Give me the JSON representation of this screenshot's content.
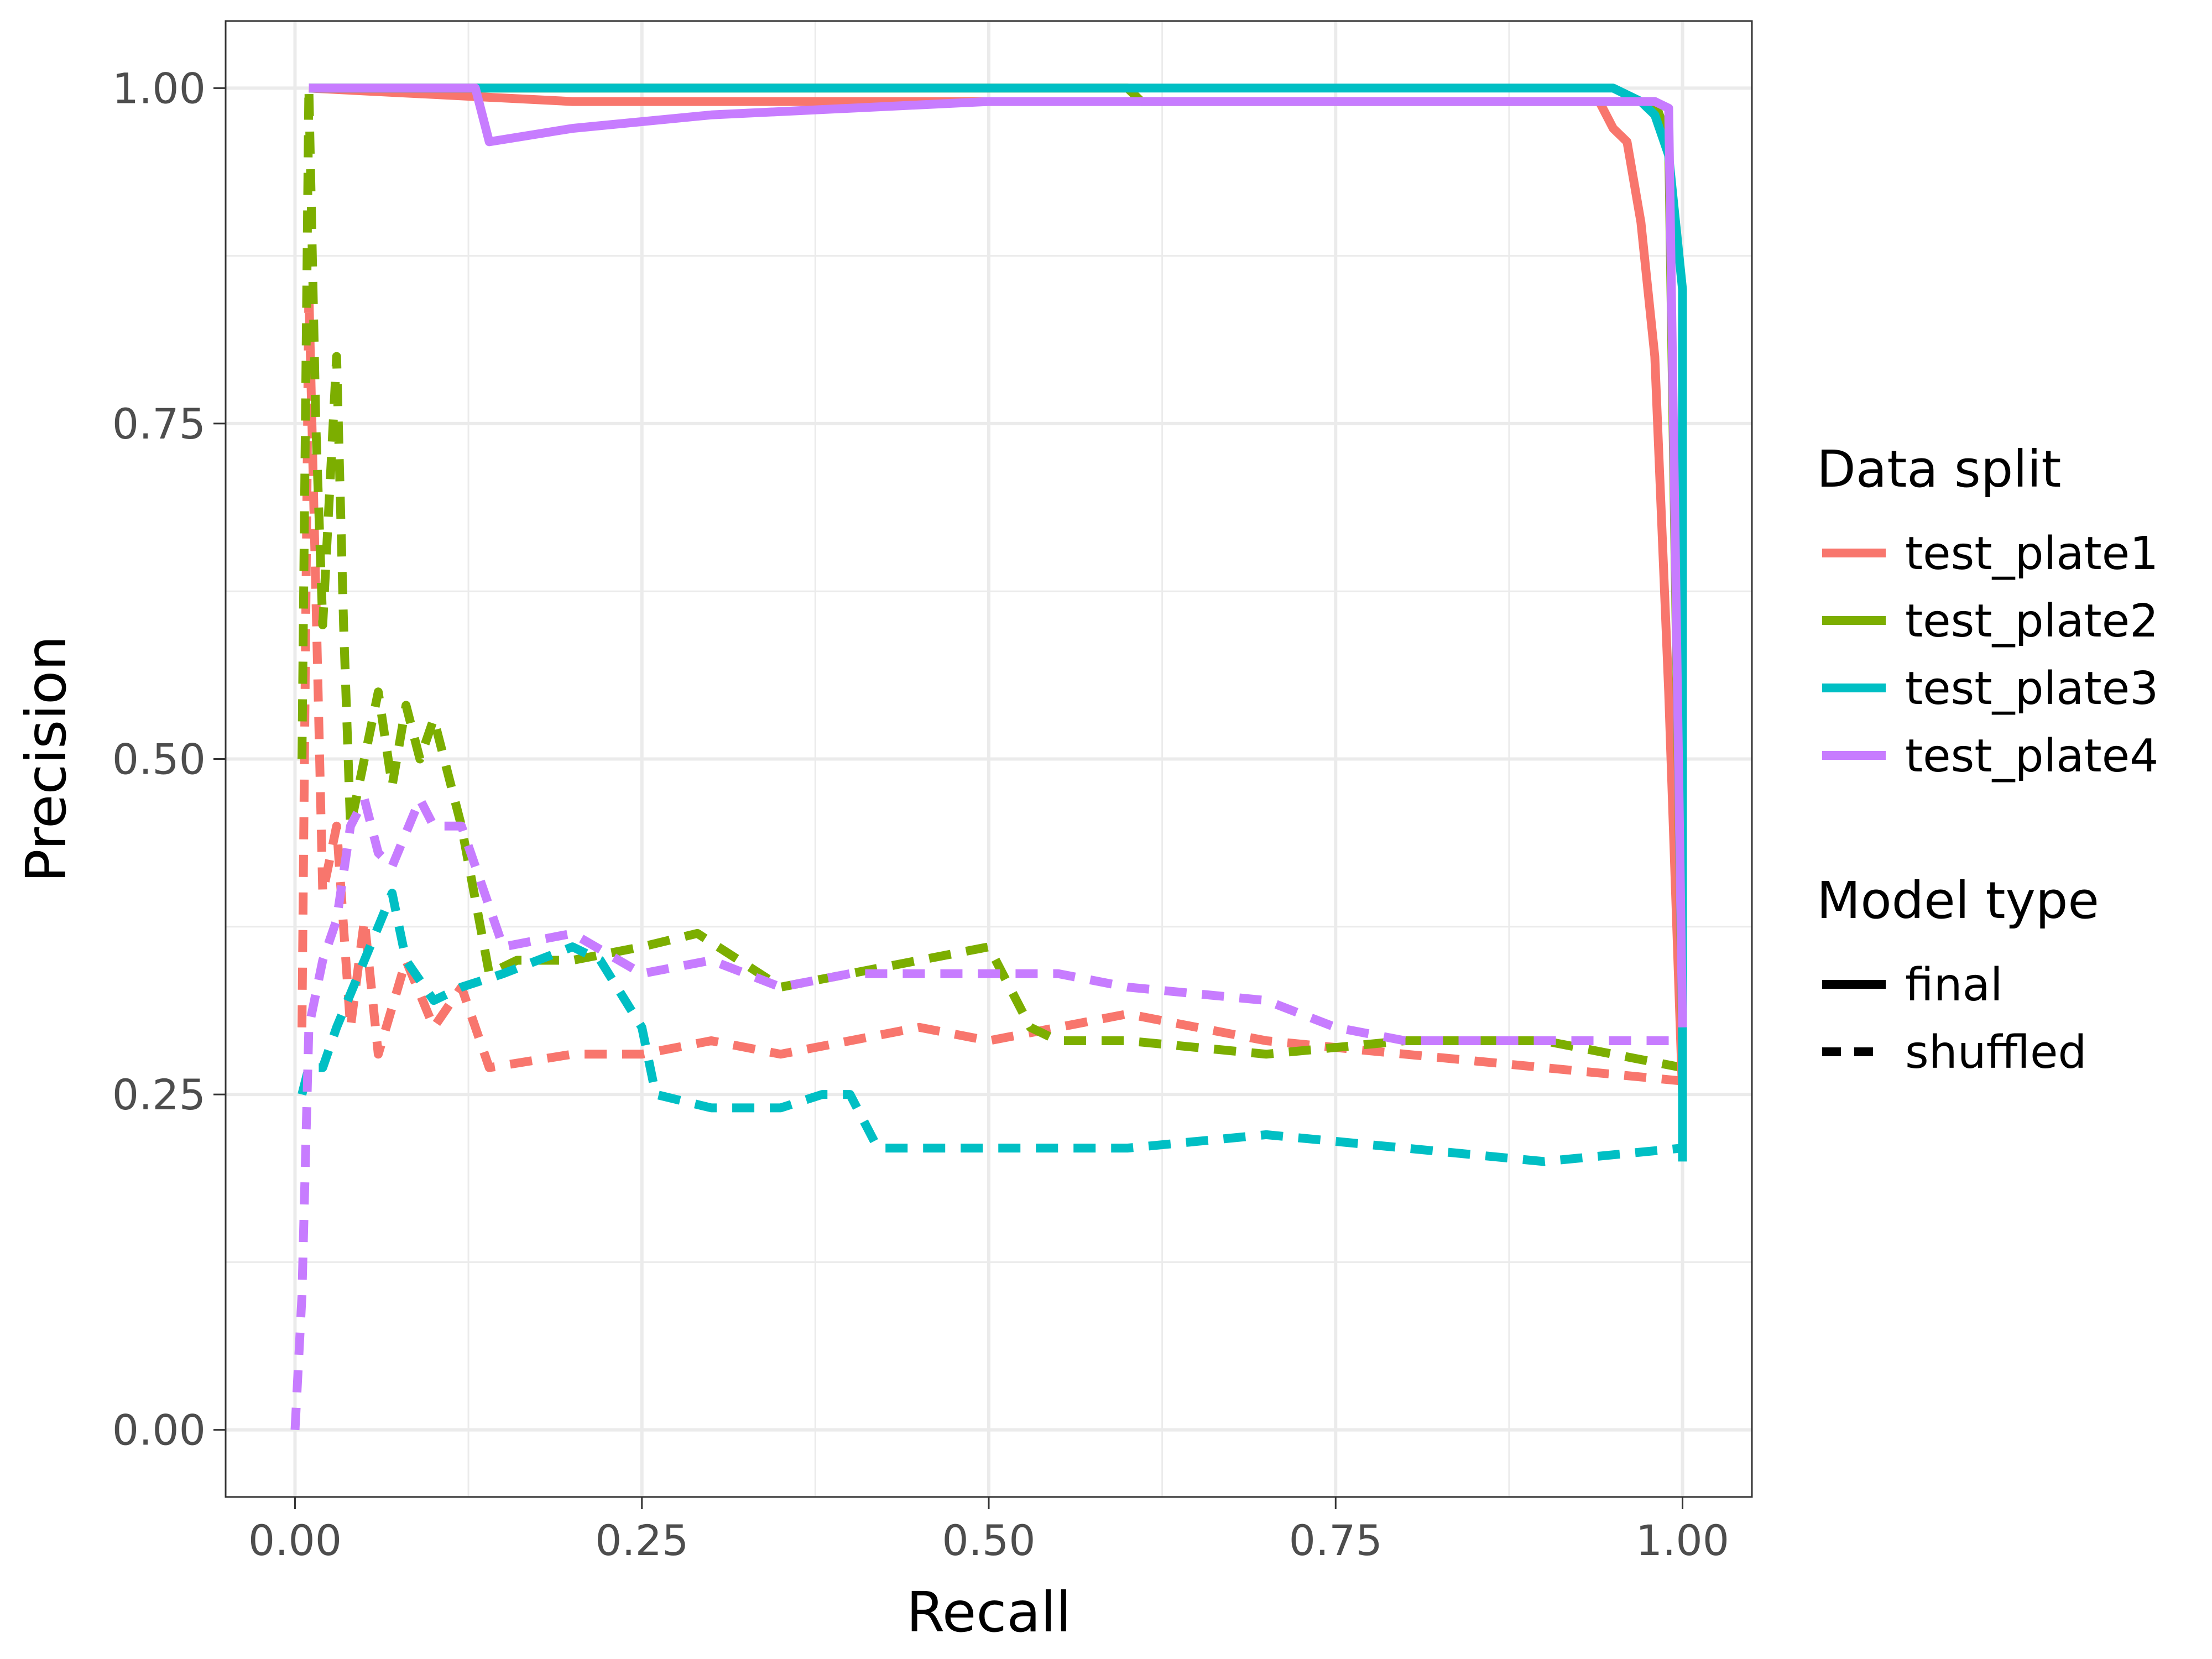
{
  "chart_data": {
    "type": "line",
    "xlabel": "Recall",
    "ylabel": "Precision",
    "xlim": [
      -0.05,
      1.05
    ],
    "ylim": [
      -0.05,
      1.05
    ],
    "x_ticks": [
      "0.00",
      "0.25",
      "0.50",
      "0.75",
      "1.00"
    ],
    "y_ticks": [
      "0.00",
      "0.25",
      "0.50",
      "0.75",
      "1.00"
    ],
    "grid": true,
    "legend_position": "right",
    "legend": {
      "color_title": "Data split",
      "color_entries": [
        {
          "label": "test_plate1",
          "color": "#F8766D"
        },
        {
          "label": "test_plate2",
          "color": "#7CAE00"
        },
        {
          "label": "test_plate3",
          "color": "#00BFC4"
        },
        {
          "label": "test_plate4",
          "color": "#C77CFF"
        }
      ],
      "linetype_title": "Model type",
      "linetype_entries": [
        {
          "label": "final",
          "dash": "solid"
        },
        {
          "label": "shuffled",
          "dash": "dashed"
        }
      ]
    },
    "series": [
      {
        "name": "test_plate1",
        "model": "final",
        "color": "#F8766D",
        "dash": "solid",
        "x": [
          0.01,
          0.2,
          0.5,
          0.8,
          0.94,
          0.95,
          0.96,
          0.97,
          0.98,
          0.99,
          1.0
        ],
        "y": [
          1.0,
          0.99,
          0.99,
          0.99,
          0.99,
          0.97,
          0.96,
          0.9,
          0.8,
          0.55,
          0.25
        ]
      },
      {
        "name": "test_plate2",
        "model": "final",
        "color": "#7CAE00",
        "dash": "solid",
        "x": [
          0.01,
          0.6,
          0.61,
          0.8,
          0.95,
          0.98,
          0.99,
          1.0
        ],
        "y": [
          1.0,
          1.0,
          0.99,
          0.99,
          0.99,
          0.99,
          0.96,
          0.29
        ]
      },
      {
        "name": "test_plate3",
        "model": "final",
        "color": "#00BFC4",
        "dash": "solid",
        "x": [
          0.01,
          0.5,
          0.95,
          0.96,
          0.97,
          0.98,
          0.99,
          1.0,
          1.0
        ],
        "y": [
          1.0,
          1.0,
          1.0,
          0.995,
          0.99,
          0.98,
          0.95,
          0.85,
          0.2
        ]
      },
      {
        "name": "test_plate4",
        "model": "final",
        "color": "#C77CFF",
        "dash": "solid",
        "x": [
          0.01,
          0.13,
          0.14,
          0.2,
          0.3,
          0.5,
          0.6,
          0.8,
          0.95,
          0.98,
          0.99,
          1.0
        ],
        "y": [
          1.0,
          1.0,
          0.96,
          0.97,
          0.98,
          0.99,
          0.99,
          0.99,
          0.99,
          0.99,
          0.985,
          0.3
        ]
      },
      {
        "name": "test_plate1",
        "model": "shuffled",
        "color": "#F8766D",
        "dash": "dashed",
        "x": [
          0.005,
          0.01,
          0.02,
          0.03,
          0.04,
          0.05,
          0.06,
          0.08,
          0.1,
          0.12,
          0.14,
          0.2,
          0.25,
          0.3,
          0.35,
          0.4,
          0.45,
          0.5,
          0.55,
          0.6,
          0.7,
          0.8,
          0.9,
          1.0
        ],
        "y": [
          0.3,
          0.85,
          0.4,
          0.45,
          0.3,
          0.38,
          0.28,
          0.35,
          0.3,
          0.33,
          0.27,
          0.28,
          0.28,
          0.29,
          0.28,
          0.29,
          0.3,
          0.29,
          0.3,
          0.31,
          0.29,
          0.28,
          0.27,
          0.26
        ]
      },
      {
        "name": "test_plate2",
        "model": "shuffled",
        "color": "#7CAE00",
        "dash": "dashed",
        "x": [
          0.005,
          0.01,
          0.015,
          0.02,
          0.03,
          0.035,
          0.04,
          0.05,
          0.06,
          0.07,
          0.08,
          0.09,
          0.1,
          0.12,
          0.14,
          0.16,
          0.2,
          0.25,
          0.29,
          0.35,
          0.4,
          0.45,
          0.5,
          0.53,
          0.55,
          0.6,
          0.7,
          0.8,
          0.9,
          1.0
        ],
        "y": [
          0.5,
          1.0,
          0.75,
          0.6,
          0.8,
          0.6,
          0.45,
          0.5,
          0.55,
          0.48,
          0.54,
          0.5,
          0.53,
          0.45,
          0.34,
          0.35,
          0.35,
          0.36,
          0.37,
          0.33,
          0.34,
          0.35,
          0.36,
          0.3,
          0.29,
          0.29,
          0.28,
          0.29,
          0.29,
          0.27
        ]
      },
      {
        "name": "test_plate3",
        "model": "shuffled",
        "color": "#00BFC4",
        "dash": "dashed",
        "x": [
          0.005,
          0.01,
          0.02,
          0.03,
          0.05,
          0.07,
          0.08,
          0.1,
          0.12,
          0.15,
          0.2,
          0.22,
          0.25,
          0.26,
          0.3,
          0.35,
          0.38,
          0.4,
          0.42,
          0.5,
          0.6,
          0.7,
          0.8,
          0.9,
          1.0
        ],
        "y": [
          0.25,
          0.27,
          0.27,
          0.3,
          0.35,
          0.4,
          0.35,
          0.32,
          0.33,
          0.34,
          0.36,
          0.35,
          0.3,
          0.25,
          0.24,
          0.24,
          0.25,
          0.25,
          0.21,
          0.21,
          0.21,
          0.22,
          0.21,
          0.2,
          0.21
        ]
      },
      {
        "name": "test_plate4",
        "model": "shuffled",
        "color": "#C77CFF",
        "dash": "dashed",
        "x": [
          0.0,
          0.005,
          0.01,
          0.02,
          0.03,
          0.04,
          0.05,
          0.06,
          0.07,
          0.09,
          0.1,
          0.12,
          0.15,
          0.2,
          0.25,
          0.3,
          0.35,
          0.4,
          0.45,
          0.5,
          0.55,
          0.6,
          0.7,
          0.75,
          0.8,
          0.9,
          1.0
        ],
        "y": [
          0.0,
          0.1,
          0.3,
          0.35,
          0.38,
          0.45,
          0.47,
          0.43,
          0.42,
          0.47,
          0.45,
          0.45,
          0.36,
          0.37,
          0.34,
          0.35,
          0.33,
          0.34,
          0.34,
          0.34,
          0.34,
          0.33,
          0.32,
          0.3,
          0.29,
          0.29,
          0.29
        ]
      }
    ]
  }
}
